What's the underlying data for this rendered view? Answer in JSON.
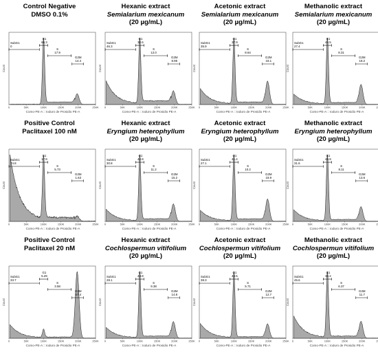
{
  "colors": {
    "fill": "#a9a9a9",
    "line": "#000000",
    "axis": "#333333"
  },
  "x_ticks": [
    "0",
    "50K",
    "100K",
    "150K",
    "200K",
    "250K"
  ],
  "y_axis_label": "Count",
  "x_axis_label": "Como-PE-A :: Ioduro de Prosidio PE-A",
  "chart_data": [
    {
      "type": "area",
      "title": [
        "Control Negative",
        "DMSO 0.1%"
      ],
      "title_italic": [
        false,
        false
      ],
      "gates": {
        "SubG1": "0",
        "G1": "66.3",
        "S": "17.9",
        "G2M": "14.4"
      }
    },
    {
      "type": "area",
      "title": [
        "Hexanic extract",
        "Semialarium mexicanum",
        "(20 µg/mL)"
      ],
      "title_italic": [
        false,
        true,
        false
      ],
      "gates": {
        "SubG1": "46.3",
        "G1": "32.6",
        "S": "12.0",
        "G2M": "8.95"
      }
    },
    {
      "type": "area",
      "title": [
        "Acetonic extract",
        "Semialarium mexicanum",
        "(20 µg/mL)"
      ],
      "title_italic": [
        false,
        true,
        false
      ],
      "gates": {
        "SubG1": "35.9",
        "G1": "37.9",
        "S": "8.64",
        "G2M": "18.1"
      }
    },
    {
      "type": "area",
      "title": [
        "Methanolic extract",
        "Semialarium mexicanum",
        "(20 µg/mL)"
      ],
      "title_italic": [
        false,
        true,
        false
      ],
      "gates": {
        "SubG1": "27.4",
        "G1": "44.5",
        "S": "8.31",
        "G2M": "18.2"
      }
    },
    {
      "type": "area",
      "title": [
        "Positive Control",
        "Paclitaxel 100 nM"
      ],
      "title_italic": [
        false,
        false
      ],
      "gates": {
        "SubG1": "74.8",
        "G1": "17.9",
        "S": "5.73",
        "G2M": "1.63"
      }
    },
    {
      "type": "area",
      "title": [
        "Hexanic extract",
        "Eryngium heterophyllum",
        "(20 µg/mL)"
      ],
      "title_italic": [
        false,
        true,
        false
      ],
      "gates": {
        "SubG1": "30.8",
        "G1": "42.8",
        "S": "11.2",
        "G2M": "15.2"
      }
    },
    {
      "type": "area",
      "title": [
        "Acetonic extract",
        "Eryngium heterophyllum",
        "(20 µg/mL)"
      ],
      "title_italic": [
        false,
        true,
        false
      ],
      "gates": {
        "SubG1": "27.1",
        "G1": "41.4",
        "S": "10.2",
        "G2M": "18.9"
      }
    },
    {
      "type": "area",
      "title": [
        "Methanolic extract",
        "Eryngium heterophyllum",
        "(20 µg/mL)"
      ],
      "title_italic": [
        false,
        true,
        false
      ],
      "gates": {
        "SubG1": "31.6",
        "G1": "45.8",
        "S": "8.11",
        "G2M": "13.6"
      }
    },
    {
      "type": "area",
      "title": [
        "Positive Control",
        "Paclitaxel 20 nM"
      ],
      "title_italic": [
        false,
        false
      ],
      "gates": {
        "SubG1": "33.7",
        "G1": "5.29",
        "S": "3.58",
        "G2M": "57.4"
      }
    },
    {
      "type": "area",
      "title": [
        "Hexanic extract",
        "Cochlospermun vitifolium",
        "(20 µg/mL)"
      ],
      "title_italic": [
        false,
        true,
        false
      ],
      "gates": {
        "SubG1": "28.1",
        "G1": "43.8",
        "S": "9.38",
        "G2M": "14.8"
      }
    },
    {
      "type": "area",
      "title": [
        "Acetonic extract",
        "Cochlospermun vitifolium",
        "(20 µg/mL)"
      ],
      "title_italic": [
        false,
        true,
        false
      ],
      "gates": {
        "SubG1": "38.3",
        "G1": "43.5",
        "S": "5.71",
        "G2M": "12.7"
      }
    },
    {
      "type": "area",
      "title": [
        "Methanolic extract",
        "Cochlospermun vitifolium",
        "(20 µg/mL)"
      ],
      "title_italic": [
        false,
        true,
        false
      ],
      "gates": {
        "SubG1": "45.6",
        "G1": "34.2",
        "S": "6.37",
        "G2M": "11.7"
      }
    }
  ]
}
